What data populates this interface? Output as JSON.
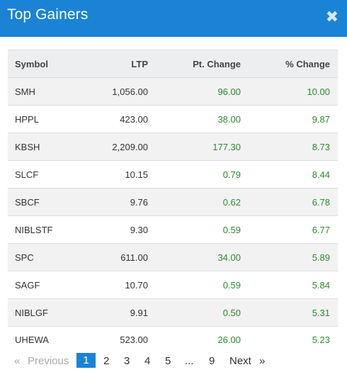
{
  "modal": {
    "title": "Top Gainers",
    "close_glyph": "✖"
  },
  "table": {
    "headers": {
      "symbol": "Symbol",
      "ltp": "LTP",
      "pt_change": "Pt. Change",
      "pct_change": "% Change"
    },
    "rows": [
      {
        "symbol": "SMH",
        "ltp": "1,056.00",
        "pt_change": "96.00",
        "pct_change": "10.00"
      },
      {
        "symbol": "HPPL",
        "ltp": "423.00",
        "pt_change": "38.00",
        "pct_change": "9.87"
      },
      {
        "symbol": "KBSH",
        "ltp": "2,209.00",
        "pt_change": "177.30",
        "pct_change": "8.73"
      },
      {
        "symbol": "SLCF",
        "ltp": "10.15",
        "pt_change": "0.79",
        "pct_change": "8.44"
      },
      {
        "symbol": "SBCF",
        "ltp": "9.76",
        "pt_change": "0.62",
        "pct_change": "6.78"
      },
      {
        "symbol": "NIBLSTF",
        "ltp": "9.30",
        "pt_change": "0.59",
        "pct_change": "6.77"
      },
      {
        "symbol": "SPC",
        "ltp": "611.00",
        "pt_change": "34.00",
        "pct_change": "5.89"
      },
      {
        "symbol": "SAGF",
        "ltp": "10.70",
        "pt_change": "0.59",
        "pct_change": "5.84"
      },
      {
        "symbol": "NIBLGF",
        "ltp": "9.91",
        "pt_change": "0.50",
        "pct_change": "5.31"
      },
      {
        "symbol": "UHEWA",
        "ltp": "523.00",
        "pt_change": "26.00",
        "pct_change": "5.23"
      }
    ]
  },
  "pagination": {
    "prev_arrow": "«",
    "prev_label": "Previous",
    "pages": [
      "1",
      "2",
      "3",
      "4",
      "5"
    ],
    "ellipsis": "...",
    "last_page": "9",
    "next_label": "Next",
    "next_arrow": "»",
    "current_page": "1"
  },
  "colors": {
    "header_blue": "#1a83d5",
    "gain_green": "#2e8b2e"
  }
}
